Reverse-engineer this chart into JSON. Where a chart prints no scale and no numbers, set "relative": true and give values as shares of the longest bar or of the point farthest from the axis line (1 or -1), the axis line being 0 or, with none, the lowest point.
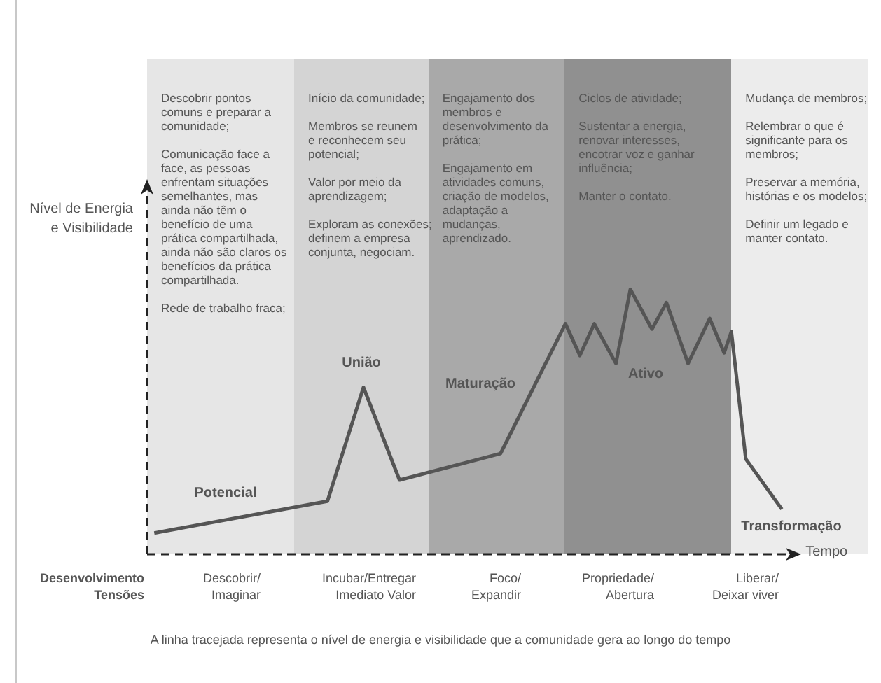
{
  "chart_data": {
    "type": "line",
    "relative": true,
    "ylabel": "Nível de Energia\ne Visibilidade",
    "xlabel": "Tempo",
    "categories": [
      null,
      null,
      null,
      null,
      null,
      null,
      null,
      null,
      null,
      null,
      null,
      null,
      null,
      null,
      null,
      null,
      null,
      null,
      null,
      null,
      null,
      null,
      null,
      null,
      null,
      null,
      null,
      null,
      null,
      null,
      null,
      null,
      null,
      null,
      null,
      null,
      null,
      null,
      null,
      null,
      null,
      null,
      null,
      null,
      null,
      null,
      null,
      null,
      null,
      null,
      null,
      null,
      null,
      null,
      null,
      null,
      null,
      null,
      null,
      null,
      null,
      null,
      null,
      null,
      null,
      null,
      null,
      null,
      null,
      null,
      null,
      null,
      null,
      null,
      null,
      null,
      null,
      null,
      null,
      null,
      null,
      null,
      null,
      null,
      null,
      null,
      null,
      null,
      null,
      null,
      null,
      null,
      null,
      null,
      null,
      null,
      null,
      null,
      null,
      null,
      null
    ],
    "series": [
      {
        "color": "#555555",
        "values": [
          null,
          0.08,
          null,
          null,
          null,
          null,
          null,
          null,
          null,
          null,
          null,
          null,
          null,
          null,
          null,
          null,
          null,
          null,
          null,
          null,
          null,
          null,
          null,
          null,
          null,
          0.2,
          null,
          null,
          null,
          null,
          0.63,
          null,
          null,
          null,
          null,
          0.28,
          null,
          null,
          null,
          null,
          null,
          null,
          null,
          null,
          null,
          null,
          null,
          null,
          null,
          0.38,
          null,
          null,
          null,
          null,
          null,
          null,
          null,
          null,
          0.87,
          null,
          0.75,
          null,
          0.87,
          null,
          null,
          0.72,
          null,
          1,
          null,
          null,
          0.85,
          null,
          0.95,
          null,
          null,
          0.72,
          null,
          null,
          0.89,
          null,
          0.76,
          0.84,
          null,
          0.36,
          null,
          null,
          null,
          null,
          0.17,
          null,
          null,
          null,
          null,
          null,
          null,
          null,
          null,
          null,
          null,
          null,
          null
        ]
      }
    ],
    "tick_labels": false,
    "legend": false,
    "marker": "none",
    "line_style": "solid",
    "annotations": [
      "Descobrir pontos\ncomuns e preparar a\ncomunidade;\n\nComunicação face a\nface, as pessoas\nenfrentam situações\nsemelhantes, mas\nainda não têm o\nbenefício de uma\nprática compartilhada,\nainda não são claros os\nbenefícios da prática\ncompartilhada.\n\nRede de trabalho fraca;",
      "Início da comunidade;\n\nMembros se reunem\ne reconhecem seu\npotencial;\n\nValor por meio da\naprendizagem;\n\nExploram as conexões;\ndefinem a empresa\nconjunta, negociam.",
      "Engajamento dos\nmembros e\ndesenvolvimento da\nprática;\n\nEngajamento em\natividades comuns,\ncriação de modelos,\nadaptação a\nmudanças,\naprendizado.",
      "Ciclos de atividade;\n\nSustentar a energia,\nrenovar interesses,\nencotrar voz e ganhar\ninfluência;\n\nManter o contato.",
      "Mudança de membros;\n\nRelembrar o que é\nsignificante para os\nmembros;\n\nPreservar a memória,\nhistórias e os modelos;\n\nDefinir um legado e\nmanter contato.",
      "Desenvolvimento\nTensões",
      "Potencial",
      "União",
      "Maturação",
      "Ativo",
      "Transformação",
      "Descobrir/\nImaginar",
      "Incubar/Entregar\nImediato Valor",
      "Foco/\nExpandir",
      "Propriedade/\nAbertura",
      "Liberar/\nDeixar viver",
      "A linha tracejada representa o nível de energia e visibilidade que a comunidade gera ao longo do tempo"
    ]
  }
}
